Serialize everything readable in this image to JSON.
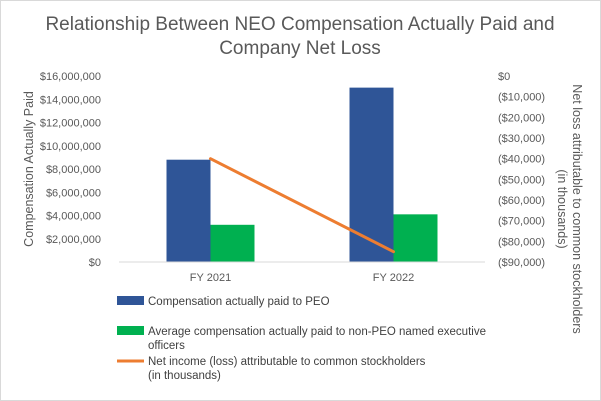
{
  "chart_data": {
    "type": "bar",
    "title_lines": [
      "Relationship Between NEO Compensation Actually Paid and",
      "Company Net Loss"
    ],
    "categories": [
      "FY 2021",
      "FY 2022"
    ],
    "series": [
      {
        "name": "Compensation actually paid to PEO",
        "kind": "bar",
        "axis": "left",
        "color": "#2f5597",
        "values": [
          8800000,
          15000000
        ]
      },
      {
        "name_lines": [
          "Average compensation actually paid to non-PEO named executive",
          "officers"
        ],
        "kind": "bar",
        "axis": "left",
        "color": "#00b050",
        "values": [
          3200000,
          4100000
        ]
      },
      {
        "name_lines": [
          "Net income (loss) attributable to common stockholders",
          "(in thousands)"
        ],
        "kind": "line",
        "axis": "right",
        "color": "#ed7d31",
        "values": [
          -40000,
          -85000
        ]
      }
    ],
    "left_axis": {
      "title": "Compensation Actually Paid",
      "ylim": [
        0,
        16000000
      ],
      "tick_labels": [
        "$0",
        "$2,000,000",
        "$4,000,000",
        "$6,000,000",
        "$8,000,000",
        "$10,000,000",
        "$12,000,000",
        "$14,000,000",
        "$16,000,000"
      ]
    },
    "right_axis": {
      "title_lines": [
        "Net loss attributable to common stockholders",
        "(in thousands)"
      ],
      "ylim": [
        -90000,
        0
      ],
      "tick_labels": [
        "($90,000)",
        "($80,000)",
        "($70,000)",
        "($60,000)",
        "($50,000)",
        "($40,000)",
        "($30,000)",
        "($20,000)",
        "($10,000)",
        "$0"
      ]
    },
    "grid": false,
    "legend_position": "bottom"
  }
}
